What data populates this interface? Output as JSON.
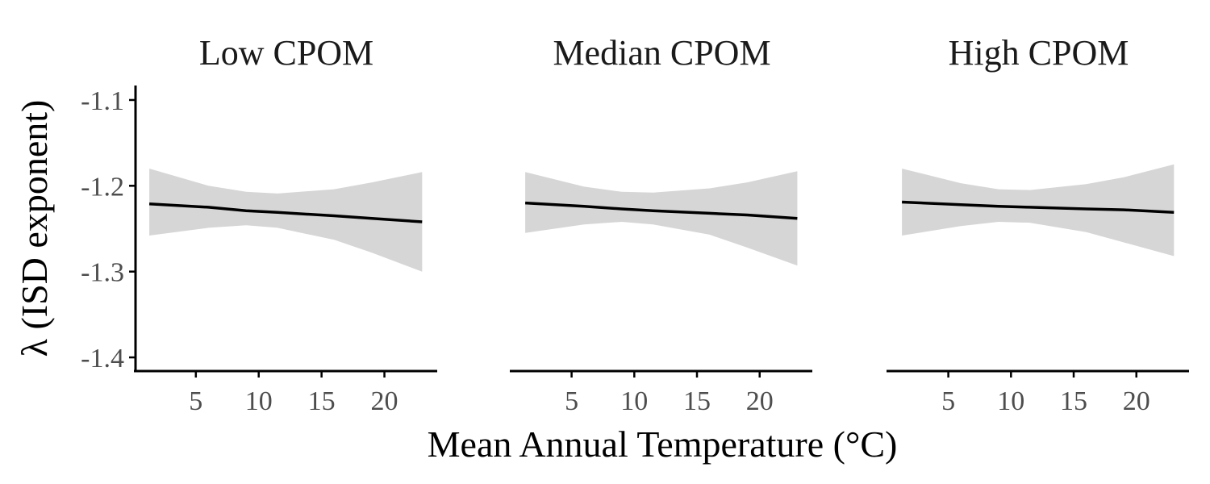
{
  "chart_data": {
    "type": "line",
    "xlabel": "Mean Annual Temperature (°C)",
    "ylabel": "λ (ISD exponent)",
    "xlim": [
      0.2,
      24.2
    ],
    "ylim": [
      -1.415,
      -1.085
    ],
    "x_ticks": [
      5,
      10,
      15,
      20
    ],
    "x_tick_labels": [
      "5",
      "10",
      "15",
      "20"
    ],
    "y_ticks": [
      -1.1,
      -1.2,
      -1.3,
      -1.4
    ],
    "y_tick_labels": [
      "-1.1",
      "-1.2",
      "-1.3",
      "-1.4"
    ],
    "grid": false,
    "colors": {
      "line": "#000000",
      "ribbon": "#d6d6d6",
      "axis": "#000000"
    },
    "facets": [
      {
        "title": "Low CPOM",
        "x": [
          1.3,
          6,
          9,
          11.5,
          16,
          19,
          23
        ],
        "y": [
          -1.221,
          -1.225,
          -1.229,
          -1.231,
          -1.235,
          -1.238,
          -1.242
        ],
        "lower": [
          -1.258,
          -1.249,
          -1.246,
          -1.249,
          -1.263,
          -1.278,
          -1.3
        ],
        "upper": [
          -1.18,
          -1.2,
          -1.207,
          -1.209,
          -1.204,
          -1.196,
          -1.184
        ]
      },
      {
        "title": "Median CPOM",
        "x": [
          1.3,
          6,
          9,
          11.5,
          16,
          19,
          23
        ],
        "y": [
          -1.22,
          -1.224,
          -1.227,
          -1.229,
          -1.232,
          -1.234,
          -1.238
        ],
        "lower": [
          -1.255,
          -1.245,
          -1.242,
          -1.245,
          -1.257,
          -1.272,
          -1.293
        ],
        "upper": [
          -1.184,
          -1.201,
          -1.207,
          -1.208,
          -1.203,
          -1.196,
          -1.183
        ]
      },
      {
        "title": "High CPOM",
        "x": [
          1.3,
          6,
          9,
          11.5,
          16,
          19,
          23
        ],
        "y": [
          -1.219,
          -1.222,
          -1.224,
          -1.225,
          -1.227,
          -1.228,
          -1.231
        ],
        "lower": [
          -1.258,
          -1.247,
          -1.242,
          -1.243,
          -1.254,
          -1.266,
          -1.282
        ],
        "upper": [
          -1.18,
          -1.197,
          -1.204,
          -1.205,
          -1.198,
          -1.19,
          -1.175
        ]
      }
    ]
  }
}
